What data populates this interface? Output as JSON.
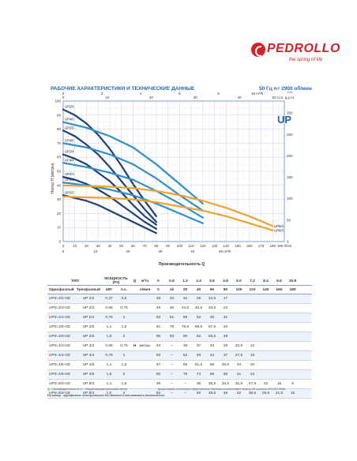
{
  "brand": {
    "name": "PEDROLLO",
    "tagline": "the spring of life"
  },
  "header": {
    "title": "РАБОЧИЕ ХАРАКТЕРИСТИКИ И ТЕХНИЧЕСКИЕ ДАННЫЕ",
    "spec": "50 Гц  n= 2900 об/мин"
  },
  "chart_data": {
    "type": "line",
    "badge": "UP",
    "xlabel": "Производительность Q",
    "ylabel": "Напор H (метры)",
    "xlim": [
      0,
      190
    ],
    "ylim": [
      0,
      100
    ],
    "x_ticks": [
      "0",
      "10",
      "20",
      "30",
      "40",
      "50",
      "60",
      "70",
      "80",
      "90",
      "100",
      "110",
      "120",
      "130",
      "140",
      "150",
      "160",
      "170",
      "180",
      "190 l/min"
    ],
    "x_ticks_top": [
      "0",
      "10",
      "20",
      "30",
      "40",
      "50 U.S. g.p.m."
    ],
    "x_ticks_top2": [
      "0",
      "2",
      "4",
      "6",
      "8",
      "10 m³/h"
    ],
    "x_ticks_bottom2": [
      "0",
      "10",
      "20",
      "30",
      "40",
      "50 m³/h"
    ],
    "y_ticks": [
      "0",
      "10",
      "20",
      "30",
      "40",
      "50",
      "60",
      "70",
      "80",
      "90",
      "100"
    ],
    "y2_ticks": [
      "0",
      "50",
      "100",
      "150",
      "200",
      "250",
      "300",
      "350"
    ],
    "y2_unit": "ft",
    "xunit": "m³/h",
    "series": [
      {
        "name": "UP2/6",
        "color": "#1f3f78",
        "x": [
          0,
          10,
          20,
          30,
          40,
          50,
          60,
          70,
          80
        ],
        "y": [
          94,
          90,
          84,
          76,
          66,
          54,
          41,
          29,
          18
        ]
      },
      {
        "name": "UP2/5",
        "color": "#1f3f78",
        "x": [
          0,
          10,
          20,
          30,
          40,
          50,
          60,
          70,
          80
        ],
        "y": [
          79,
          75,
          69,
          62,
          53,
          43,
          33,
          23,
          14
        ]
      },
      {
        "name": "UP4/6",
        "color": "#2e90c8",
        "x": [
          0,
          20,
          40,
          60,
          80,
          100,
          120
        ],
        "y": [
          85,
          81,
          75,
          67,
          55,
          41,
          27
        ]
      },
      {
        "name": "UP4/5",
        "color": "#2e90c8",
        "x": [
          0,
          20,
          40,
          60,
          80,
          100,
          120
        ],
        "y": [
          70,
          67,
          62,
          55,
          45,
          33,
          22
        ]
      },
      {
        "name": "UP2/4",
        "color": "#1f3f78",
        "x": [
          0,
          10,
          20,
          30,
          40,
          50,
          60,
          70,
          80
        ],
        "y": [
          62,
          59,
          55,
          49,
          43,
          35,
          26,
          18,
          12
        ]
      },
      {
        "name": "UP4/4",
        "color": "#2e90c8",
        "x": [
          0,
          20,
          40,
          60,
          80,
          100,
          120
        ],
        "y": [
          56,
          53,
          49,
          44,
          36,
          27,
          17
        ]
      },
      {
        "name": "UP2/3",
        "color": "#1f3f78",
        "x": [
          0,
          10,
          20,
          30,
          40,
          50,
          60,
          70,
          80
        ],
        "y": [
          46,
          44,
          41,
          37,
          32,
          26,
          20,
          14,
          9
        ]
      },
      {
        "name": "UP4/3",
        "color": "#2e90c8",
        "x": [
          0,
          20,
          40,
          60,
          80,
          100,
          120
        ],
        "y": [
          42,
          40,
          37,
          33,
          27,
          20,
          13
        ]
      },
      {
        "name": "UP2/2",
        "color": "#1f3f78",
        "x": [
          0,
          10,
          20,
          30,
          40,
          50,
          60,
          70,
          80
        ],
        "y": [
          33,
          31,
          29,
          26,
          22,
          18,
          14,
          10,
          6
        ]
      },
      {
        "name": "UP8/4",
        "color": "#f0a133",
        "x": [
          0,
          40,
          60,
          80,
          100,
          120,
          140,
          160,
          180
        ],
        "y": [
          40,
          39,
          38,
          36,
          33,
          29,
          24,
          18,
          11
        ]
      },
      {
        "name": "UP8/3",
        "color": "#f0a133",
        "x": [
          0,
          40,
          60,
          80,
          100,
          120,
          140,
          160,
          180
        ],
        "y": [
          32,
          31,
          30,
          28,
          25,
          22,
          18,
          13,
          8
        ]
      }
    ]
  },
  "table": {
    "type_header": "ТИП",
    "power_header": "МОЩНОСТЬ (P2)",
    "single_phase": "Однофазный",
    "three_phase": "Трехфазный",
    "kw": "кВт",
    "hp": "л.с.",
    "q_label": "Q",
    "q_unit1": "м³/ч",
    "q_unit2": "л/мин",
    "h_label": "H",
    "h_unit": "метры",
    "q_m3h": [
      "0",
      "0.6",
      "1.2",
      "2.4",
      "3.6",
      "4.8",
      "6.0",
      "7.2",
      "8.4",
      "9.6",
      "10.8"
    ],
    "q_lmin": [
      "0",
      "10",
      "20",
      "40",
      "60",
      "80",
      "100",
      "120",
      "140",
      "160",
      "180"
    ],
    "rows": [
      {
        "single": "UPm 2/2-GE",
        "three": "UP 2/2",
        "kw": "0,37",
        "hp": "0,5",
        "h": [
          "33",
          "32",
          "31",
          "28",
          "22,5",
          "17",
          "",
          "",
          "",
          "",
          ""
        ]
      },
      {
        "single": "UPm 2/3-GE",
        "three": "UP 2/3",
        "kw": "0,55",
        "hp": "0,75",
        "h": [
          "48",
          "46",
          "44,5",
          "40,5",
          "33,5",
          "23",
          "",
          "",
          "",
          "",
          ""
        ]
      },
      {
        "single": "UPm 2/4-GE",
        "three": "UP 2/4",
        "kw": "0,75",
        "hp": "1",
        "h": [
          "63",
          "61",
          "59",
          "54",
          "45",
          "31",
          "",
          "",
          "",
          "",
          ""
        ]
      },
      {
        "single": "UPm 2/5-GE",
        "three": "UP 2/5",
        "kw": "1,1",
        "hp": "1,5",
        "h": [
          "81",
          "78",
          "75,5",
          "68,5",
          "57,5",
          "40",
          "",
          "",
          "",
          "",
          ""
        ]
      },
      {
        "single": "UPm 2/6-GE",
        "three": "UP 2/6",
        "kw": "1,5",
        "hp": "2",
        "h": [
          "95",
          "93",
          "90",
          "82",
          "68,5",
          "48",
          "",
          "",
          "",
          "",
          ""
        ]
      },
      {
        "single": "UPm 4/3-GE",
        "three": "UP 4/3",
        "kw": "0,55",
        "hp": "0,75",
        "h": [
          "40",
          "–",
          "38",
          "37",
          "33",
          "28",
          "20,5",
          "12",
          "",
          "",
          ""
        ]
      },
      {
        "single": "UPm 4/4-GE",
        "three": "UP 4/4",
        "kw": "0,75",
        "hp": "1",
        "h": [
          "53",
          "–",
          "52",
          "49",
          "44",
          "37",
          "27,5",
          "16",
          "",
          "",
          ""
        ]
      },
      {
        "single": "UPm 4/5-GE",
        "three": "UP 4/5",
        "kw": "1,1",
        "hp": "1,5",
        "h": [
          "67",
          "–",
          "65",
          "61,5",
          "55",
          "46,5",
          "34",
          "20",
          "",
          "",
          ""
        ]
      },
      {
        "single": "UPm 4/6-GE",
        "three": "UP 4/6",
        "kw": "1,5",
        "hp": "2",
        "h": [
          "80",
          "–",
          "78",
          "74",
          "66",
          "56",
          "41",
          "24",
          "",
          "",
          ""
        ]
      },
      {
        "single": "UPm 8/3-GE",
        "three": "UP 8/3",
        "kw": "1,1",
        "hp": "1,5",
        "h": [
          "39",
          "–",
          "–",
          "38",
          "36,5",
          "34,5",
          "31,5",
          "27,5",
          "22",
          "16",
          "9"
        ]
      },
      {
        "single": "UPm 8/4-GE",
        "three": "UP 8/4",
        "kw": "1,5",
        "hp": "2",
        "h": [
          "52",
          "–",
          "–",
          "50",
          "48,5",
          "46",
          "42",
          "36,5",
          "29,5",
          "21,5",
          "15"
        ]
      }
    ],
    "footnote1": "Q - Производительность  H - Общий манометрический напор",
    "footnote1b": "Допустимый отклонения характеристик насосов соответствуют классу 2В согласно EN ISO 9906",
    "footnote2": "По заказу - однофазные электронасосы без внешнего поплавкового выключателя"
  }
}
